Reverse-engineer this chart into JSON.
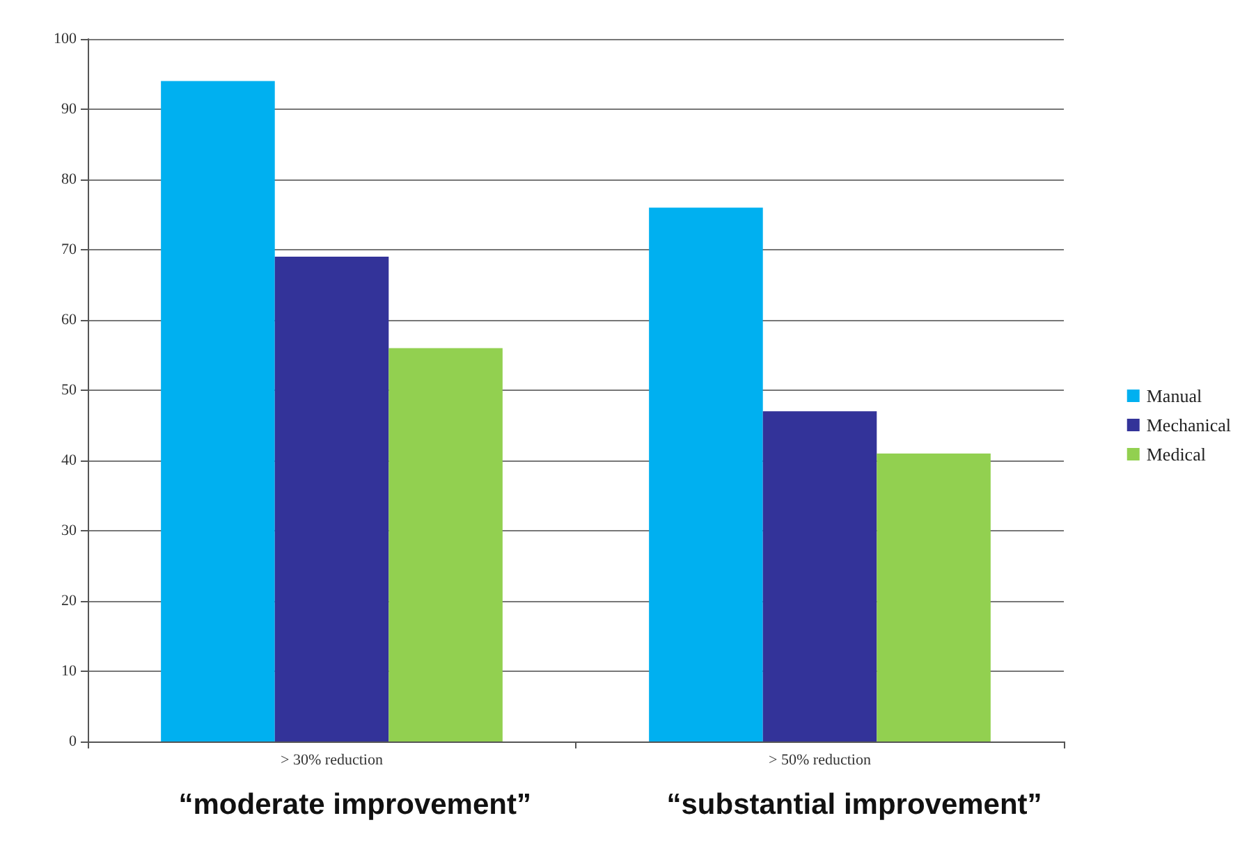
{
  "chart_data": {
    "type": "bar",
    "categories": [
      "> 30% reduction",
      "> 50% reduction"
    ],
    "series": [
      {
        "name": "Manual",
        "color": "#00b0f0",
        "values": [
          94,
          76
        ]
      },
      {
        "name": "Mechanical",
        "color": "#333399",
        "values": [
          69,
          47
        ]
      },
      {
        "name": "Medical",
        "color": "#92d050",
        "values": [
          56,
          41
        ]
      }
    ],
    "ylim": [
      0,
      100
    ],
    "yticks": [
      0,
      10,
      20,
      30,
      40,
      50,
      60,
      70,
      80,
      90,
      100
    ],
    "grid": "y",
    "legend": "right",
    "annotations": [
      "“moderate improvement”",
      "“substantial improvement”"
    ]
  }
}
